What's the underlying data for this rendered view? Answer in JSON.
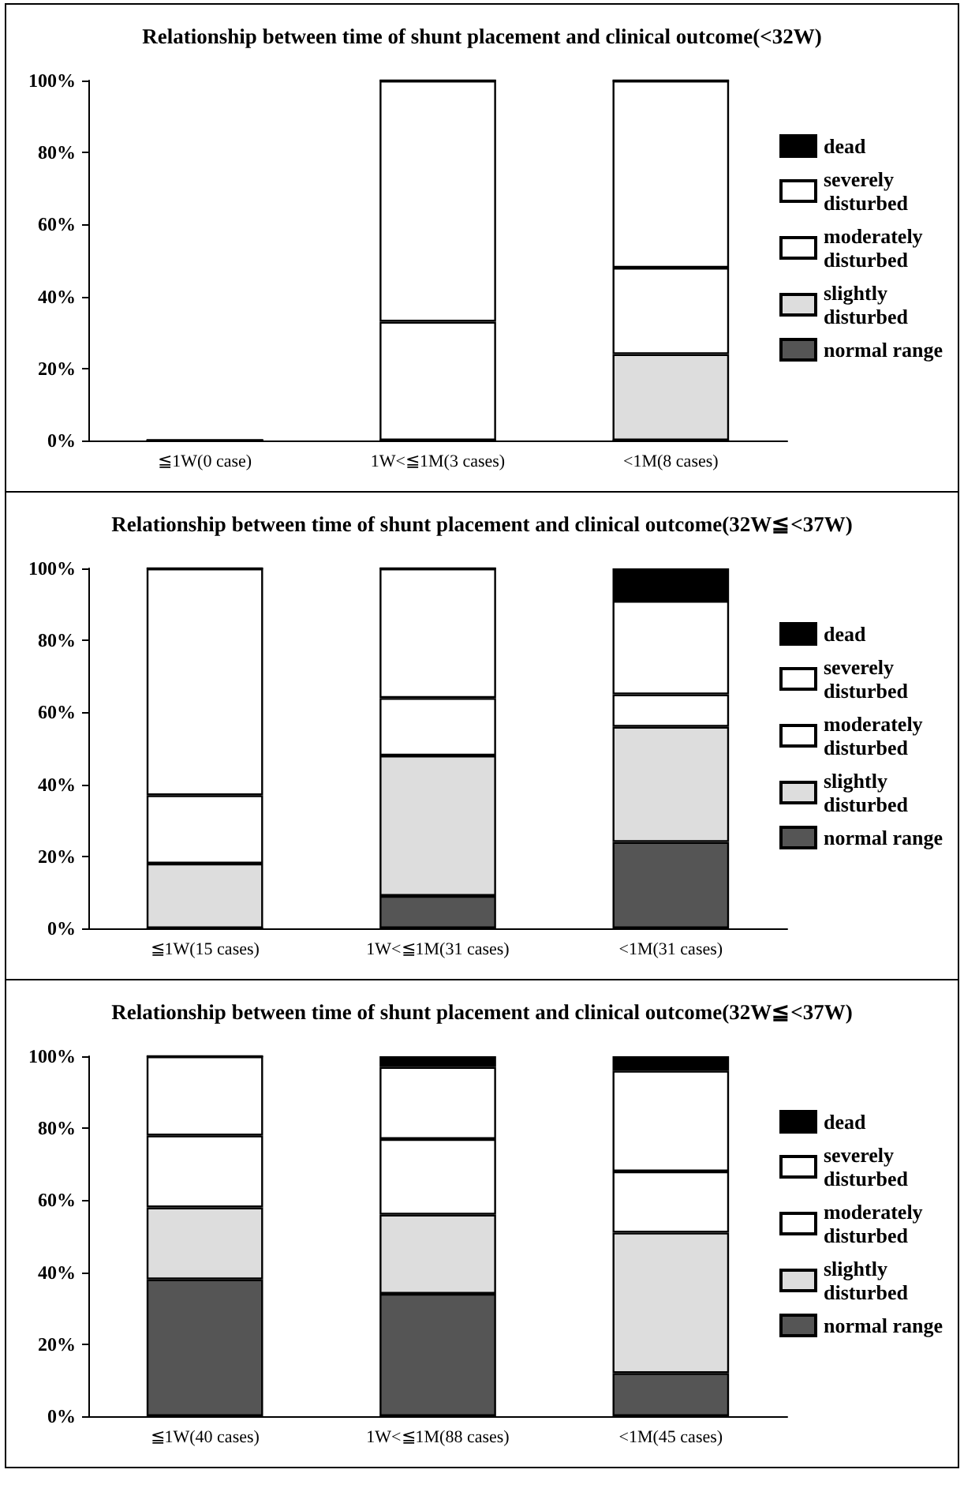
{
  "chart_data": [
    {
      "type": "bar",
      "title": "Relationship between time of shunt placement and clinical outcome(<32W)",
      "categories": [
        "≦1W(0 case)",
        "1W<≦1M(3 cases)",
        "<1M(8 cases)"
      ],
      "stacked": true,
      "legend": "right",
      "grid": false,
      "ylim": [
        0,
        100
      ],
      "yticks": [
        {
          "value": 0,
          "label": "0%"
        },
        {
          "value": 20,
          "label": "20%"
        },
        {
          "value": 40,
          "label": "40%"
        },
        {
          "value": 60,
          "label": "60%"
        },
        {
          "value": 80,
          "label": "80%"
        },
        {
          "value": 100,
          "label": "100%"
        }
      ],
      "series": [
        {
          "name": "normal range",
          "color": "#555555",
          "values": [
            0,
            0,
            0
          ]
        },
        {
          "name": "slightly disturbed",
          "color": "#dddddd",
          "values": [
            0,
            0,
            24
          ]
        },
        {
          "name": "moderately disturbed",
          "color": "#ffffff",
          "values": [
            0,
            33,
            24
          ]
        },
        {
          "name": "severely disturbed",
          "color": "#ffffff",
          "values": [
            0,
            67,
            52
          ]
        },
        {
          "name": "dead",
          "color": "#000000",
          "values": [
            0,
            0,
            0
          ]
        }
      ]
    },
    {
      "type": "bar",
      "title": "Relationship between time of shunt placement and clinical outcome(32W≦<37W)",
      "categories": [
        "≦1W(15 cases)",
        "1W<≦1M(31 cases)",
        "<1M(31 cases)"
      ],
      "stacked": true,
      "legend": "right",
      "grid": false,
      "ylim": [
        0,
        100
      ],
      "yticks": [
        {
          "value": 0,
          "label": "0%"
        },
        {
          "value": 20,
          "label": "20%"
        },
        {
          "value": 40,
          "label": "40%"
        },
        {
          "value": 60,
          "label": "60%"
        },
        {
          "value": 80,
          "label": "80%"
        },
        {
          "value": 100,
          "label": "100%"
        }
      ],
      "series": [
        {
          "name": "normal range",
          "color": "#555555",
          "values": [
            0,
            9,
            24
          ]
        },
        {
          "name": "slightly disturbed",
          "color": "#dddddd",
          "values": [
            18,
            39,
            32
          ]
        },
        {
          "name": "moderately disturbed",
          "color": "#ffffff",
          "values": [
            19,
            16,
            9
          ]
        },
        {
          "name": "severely disturbed",
          "color": "#ffffff",
          "values": [
            63,
            36,
            26
          ]
        },
        {
          "name": "dead",
          "color": "#000000",
          "values": [
            0,
            0,
            9
          ]
        }
      ]
    },
    {
      "type": "bar",
      "title": "Relationship between time of shunt placement and clinical outcome(32W≦<37W)",
      "categories": [
        "≦1W(40 cases)",
        "1W<≦1M(88 cases)",
        "<1M(45 cases)"
      ],
      "stacked": true,
      "legend": "right",
      "grid": false,
      "ylim": [
        0,
        100
      ],
      "yticks": [
        {
          "value": 0,
          "label": "0%"
        },
        {
          "value": 20,
          "label": "20%"
        },
        {
          "value": 40,
          "label": "40%"
        },
        {
          "value": 60,
          "label": "60%"
        },
        {
          "value": 80,
          "label": "80%"
        },
        {
          "value": 100,
          "label": "100%"
        }
      ],
      "series": [
        {
          "name": "normal range",
          "color": "#555555",
          "values": [
            38,
            34,
            12
          ]
        },
        {
          "name": "slightly disturbed",
          "color": "#dddddd",
          "values": [
            20,
            22,
            39
          ]
        },
        {
          "name": "moderately disturbed",
          "color": "#ffffff",
          "values": [
            20,
            21,
            17
          ]
        },
        {
          "name": "severely disturbed",
          "color": "#ffffff",
          "values": [
            22,
            20,
            28
          ]
        },
        {
          "name": "dead",
          "color": "#000000",
          "values": [
            0,
            3,
            4
          ]
        }
      ]
    }
  ]
}
